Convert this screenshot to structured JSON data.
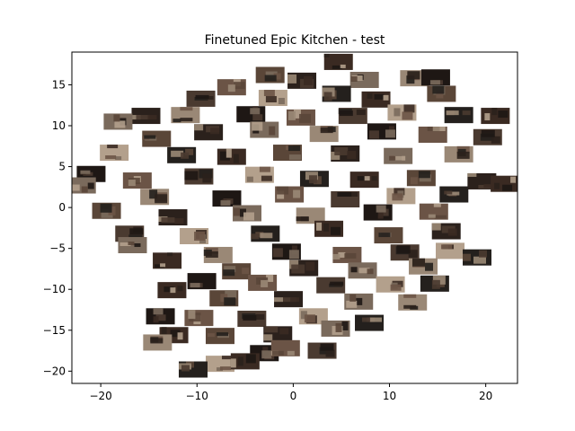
{
  "chart_data": {
    "type": "scatter",
    "title": "Finetuned Epic Kitchen - test",
    "xlabel": "",
    "ylabel": "",
    "xlim": [
      -23,
      23.3
    ],
    "ylim": [
      -21.5,
      19
    ],
    "xticks": [
      -20,
      -10,
      0,
      10,
      20
    ],
    "yticks": [
      -20,
      -15,
      -10,
      -5,
      0,
      5,
      10,
      15
    ],
    "xtick_labels": [
      "−20",
      "−10",
      "0",
      "10",
      "20"
    ],
    "ytick_labels": [
      "−20",
      "−15",
      "−10",
      "−5",
      "0",
      "5",
      "10",
      "15"
    ],
    "grid": false,
    "marker": "image-thumbnail",
    "marker_colors": [
      "#3a2a22",
      "#5a4638",
      "#2b211c",
      "#7a6a5c",
      "#9a8876",
      "#1e1714",
      "#6b5446",
      "#4a3a30",
      "#b3a08c",
      "#24201d"
    ],
    "points": [
      [
        4.7,
        17.8
      ],
      [
        -2.4,
        16.2
      ],
      [
        0.9,
        15.5
      ],
      [
        7.4,
        15.6
      ],
      [
        12.6,
        15.8
      ],
      [
        14.8,
        15.9
      ],
      [
        -6.4,
        14.7
      ],
      [
        -9.6,
        13.3
      ],
      [
        -2.1,
        13.4
      ],
      [
        4.5,
        13.9
      ],
      [
        8.6,
        13.2
      ],
      [
        15.4,
        13.9
      ],
      [
        -15.3,
        11.2
      ],
      [
        -18.2,
        10.5
      ],
      [
        -11.2,
        11.3
      ],
      [
        -4.4,
        11.4
      ],
      [
        0.8,
        11.0
      ],
      [
        6.2,
        11.2
      ],
      [
        11.3,
        11.6
      ],
      [
        17.2,
        11.3
      ],
      [
        21.0,
        11.2
      ],
      [
        -14.2,
        8.4
      ],
      [
        -8.8,
        9.2
      ],
      [
        -3.0,
        9.5
      ],
      [
        3.2,
        9.0
      ],
      [
        9.2,
        9.3
      ],
      [
        14.5,
        8.9
      ],
      [
        20.2,
        8.6
      ],
      [
        -18.6,
        6.7
      ],
      [
        -11.6,
        6.4
      ],
      [
        -6.4,
        6.2
      ],
      [
        -0.6,
        6.7
      ],
      [
        5.4,
        6.6
      ],
      [
        10.9,
        6.3
      ],
      [
        17.2,
        6.5
      ],
      [
        -21.0,
        4.1
      ],
      [
        -16.2,
        3.3
      ],
      [
        -9.8,
        3.8
      ],
      [
        -3.5,
        4.0
      ],
      [
        2.2,
        3.5
      ],
      [
        7.4,
        3.4
      ],
      [
        13.3,
        3.6
      ],
      [
        19.6,
        3.2
      ],
      [
        -22.0,
        2.7
      ],
      [
        -14.4,
        1.3
      ],
      [
        -6.9,
        1.1
      ],
      [
        -0.4,
        1.6
      ],
      [
        5.4,
        1.0
      ],
      [
        11.2,
        1.4
      ],
      [
        16.7,
        1.6
      ],
      [
        22.0,
        2.9
      ],
      [
        -19.4,
        -0.4
      ],
      [
        -12.5,
        -1.2
      ],
      [
        -4.8,
        -0.7
      ],
      [
        1.8,
        -1.0
      ],
      [
        8.8,
        -0.6
      ],
      [
        14.6,
        -0.5
      ],
      [
        -17.0,
        -3.2
      ],
      [
        -10.3,
        -3.5
      ],
      [
        -2.9,
        -3.2
      ],
      [
        3.7,
        -2.6
      ],
      [
        9.9,
        -3.4
      ],
      [
        15.9,
        -2.9
      ],
      [
        -16.7,
        -4.6
      ],
      [
        -7.8,
        -5.8
      ],
      [
        -0.7,
        -5.4
      ],
      [
        5.6,
        -5.8
      ],
      [
        11.6,
        -5.5
      ],
      [
        16.3,
        -5.3
      ],
      [
        19.1,
        -6.1
      ],
      [
        -13.1,
        -6.5
      ],
      [
        -5.9,
        -7.8
      ],
      [
        1.1,
        -7.4
      ],
      [
        7.2,
        -7.7
      ],
      [
        13.5,
        -7.2
      ],
      [
        -9.5,
        -9.0
      ],
      [
        -3.2,
        -9.2
      ],
      [
        3.9,
        -9.5
      ],
      [
        10.1,
        -9.4
      ],
      [
        14.7,
        -9.3
      ],
      [
        -12.6,
        -10.1
      ],
      [
        -7.2,
        -11.1
      ],
      [
        -0.5,
        -11.2
      ],
      [
        6.8,
        -11.5
      ],
      [
        12.4,
        -11.6
      ],
      [
        -13.8,
        -13.3
      ],
      [
        -9.8,
        -13.5
      ],
      [
        -4.3,
        -13.6
      ],
      [
        2.1,
        -13.3
      ],
      [
        7.9,
        -14.1
      ],
      [
        -12.4,
        -15.6
      ],
      [
        -7.6,
        -15.7
      ],
      [
        -1.6,
        -15.5
      ],
      [
        4.4,
        -14.8
      ],
      [
        -14.1,
        -16.5
      ],
      [
        -3.0,
        -17.8
      ],
      [
        -0.8,
        -17.2
      ],
      [
        3.0,
        -17.5
      ],
      [
        -7.6,
        -19.1
      ],
      [
        -10.4,
        -19.8
      ],
      [
        -5.0,
        -18.8
      ]
    ]
  }
}
